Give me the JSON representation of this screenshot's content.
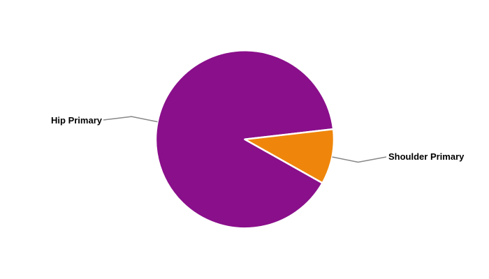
{
  "chart_data": {
    "type": "pie",
    "title": "",
    "slices": [
      {
        "label": "Hip Primary",
        "value": 90,
        "color": "#8A0F8B"
      },
      {
        "label": "Shoulder Primary",
        "value": 10,
        "color": "#EF860B"
      }
    ],
    "start_angle_deg": 29.4,
    "direction": "clockwise",
    "labels_style": "outside-with-leader-lines",
    "slice_border_color": "#FFFFFF",
    "leader_line_color": "#878787",
    "label_color": "#000000",
    "background": "#FFFFFF",
    "legend": "none"
  }
}
